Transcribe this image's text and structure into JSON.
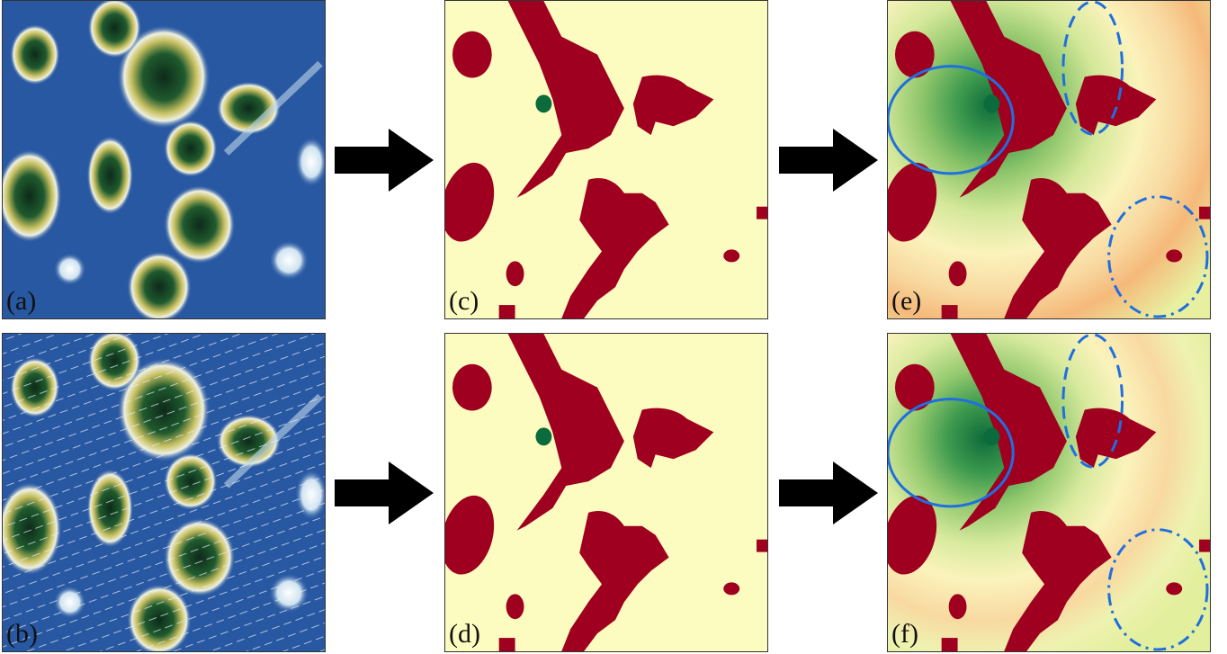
{
  "panels": {
    "a": {
      "label": "(a)"
    },
    "b": {
      "label": "(b)"
    },
    "c": {
      "label": "(c)"
    },
    "d": {
      "label": "(d)"
    },
    "e": {
      "label": "(e)"
    },
    "f": {
      "label": "(f)"
    }
  },
  "colors": {
    "field_background": "#2f5fa8",
    "field_dark": "#0d2a1a",
    "domain_red": "#a0001f",
    "background_cream": "#fcfcc0",
    "seed_green": "#0c6b3c",
    "ellipse_blue": "#1f6fe0",
    "arrow_black": "#000000"
  },
  "icons": [
    "arrow-right-icon"
  ]
}
